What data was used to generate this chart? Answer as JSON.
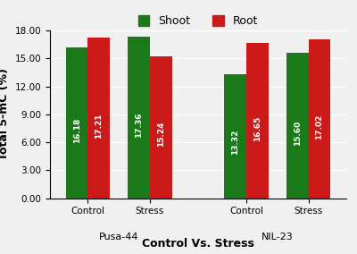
{
  "group_labels": [
    "Control",
    "Stress",
    "Control",
    "Stress"
  ],
  "subgroup_labels": [
    "Pusa-44",
    "NIL-23"
  ],
  "shoot_values": [
    16.18,
    17.36,
    13.32,
    15.6
  ],
  "root_values": [
    17.21,
    15.24,
    16.65,
    17.02
  ],
  "shoot_color": "#1a7a1a",
  "root_color": "#cc1a1a",
  "ylabel": "Total 5-mC (%)",
  "xlabel": "Control Vs. Stress",
  "ylim": [
    0,
    18.0
  ],
  "yticks": [
    0.0,
    3.0,
    6.0,
    9.0,
    12.0,
    15.0,
    18.0
  ],
  "legend_shoot": "Shoot",
  "legend_root": "Root",
  "bar_width": 0.32,
  "value_fontsize": 6.5,
  "axis_label_fontsize": 9,
  "tick_fontsize": 7.5,
  "subgroup_fontsize": 8,
  "legend_fontsize": 9,
  "background_color": "#f0f0f0",
  "group_centers": [
    0.55,
    1.45,
    2.85,
    3.75
  ],
  "xlim": [
    0.0,
    4.3
  ]
}
